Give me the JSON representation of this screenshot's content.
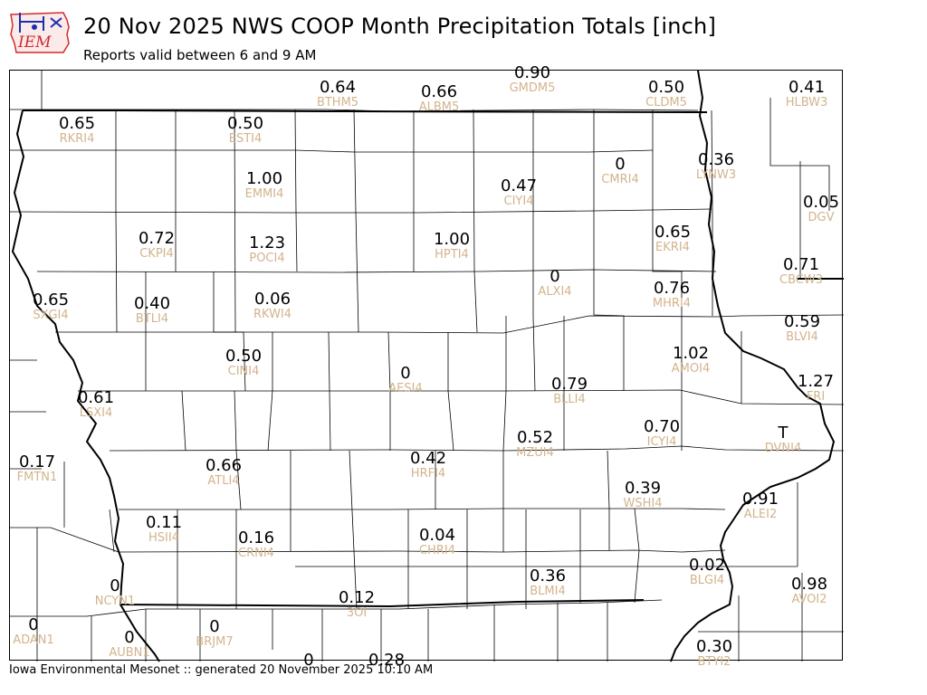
{
  "header": {
    "title": "20 Nov 2025 NWS COOP Month Precipitation Totals [inch]",
    "subtitle": "Reports valid between 6 and 9 AM",
    "logo_text": "IEM"
  },
  "footer": {
    "text": "Iowa Environmental Mesonet :: generated 20 November 2025 10:10 AM"
  },
  "colors": {
    "value": "#000000",
    "station_id": "#d2b48c",
    "border": "#000000",
    "logo_red": "#d22b2b",
    "logo_blue": "#1a2fb0"
  },
  "stations": [
    {
      "value": "0.64",
      "id": "BTHM5"
    },
    {
      "value": "0.66",
      "id": "ALBM5"
    },
    {
      "value": "0.90",
      "id": "GMDM5"
    },
    {
      "value": "0.50",
      "id": "CLDM5"
    },
    {
      "value": "0.41",
      "id": "HLBW3"
    },
    {
      "value": "0.65",
      "id": "RKRI4"
    },
    {
      "value": "0.50",
      "id": "ESTI4"
    },
    {
      "value": "0",
      "id": "CMRI4"
    },
    {
      "value": "0.36",
      "id": "LYNW3"
    },
    {
      "value": "1.00",
      "id": "EMMI4"
    },
    {
      "value": "0.47",
      "id": "CIYI4"
    },
    {
      "value": "0.05",
      "id": "DGV"
    },
    {
      "value": "0.72",
      "id": "CKPI4"
    },
    {
      "value": "1.23",
      "id": "POCI4"
    },
    {
      "value": "1.00",
      "id": "HPTI4"
    },
    {
      "value": "0.65",
      "id": "EKRI4"
    },
    {
      "value": "0.71",
      "id": "CBCW3"
    },
    {
      "value": "0",
      "id": "ALXI4"
    },
    {
      "value": "0.65",
      "id": "SXGI4"
    },
    {
      "value": "0.40",
      "id": "BTLI4"
    },
    {
      "value": "0.06",
      "id": "RKWI4"
    },
    {
      "value": "0.76",
      "id": "MHRI4"
    },
    {
      "value": "0.59",
      "id": "BLVI4"
    },
    {
      "value": "0.50",
      "id": "CINI4"
    },
    {
      "value": "1.02",
      "id": "AMOI4"
    },
    {
      "value": "0",
      "id": "AESI4"
    },
    {
      "value": "1.27",
      "id": "FRI"
    },
    {
      "value": "0.61",
      "id": "LSXI4"
    },
    {
      "value": "0.79",
      "id": "BLLI4"
    },
    {
      "value": "0.70",
      "id": "ICYI4"
    },
    {
      "value": "T",
      "id": "DVNI4"
    },
    {
      "value": "0.52",
      "id": "MZUI4"
    },
    {
      "value": "0.17",
      "id": "FMTN1"
    },
    {
      "value": "0.66",
      "id": "ATLI4"
    },
    {
      "value": "0.42",
      "id": "HRFI4"
    },
    {
      "value": "0.39",
      "id": "WSHI4"
    },
    {
      "value": "0.91",
      "id": "ALEI2"
    },
    {
      "value": "0.11",
      "id": "HSII4"
    },
    {
      "value": "0.16",
      "id": "CRNI4"
    },
    {
      "value": "0.04",
      "id": "CHRI4"
    },
    {
      "value": "0.36",
      "id": "BLMI4"
    },
    {
      "value": "0.02",
      "id": "BLGI4"
    },
    {
      "value": "0.98",
      "id": "AVOI2"
    },
    {
      "value": "0",
      "id": "NCYN1"
    },
    {
      "value": "0.12",
      "id": "3OI"
    },
    {
      "value": "0",
      "id": "ADAN1"
    },
    {
      "value": "0",
      "id": "AUBN1"
    },
    {
      "value": "0",
      "id": "BRJM7"
    },
    {
      "value": "0",
      "id": ""
    },
    {
      "value": "0.28",
      "id": ""
    },
    {
      "value": "0.30",
      "id": "BTYI2"
    }
  ]
}
